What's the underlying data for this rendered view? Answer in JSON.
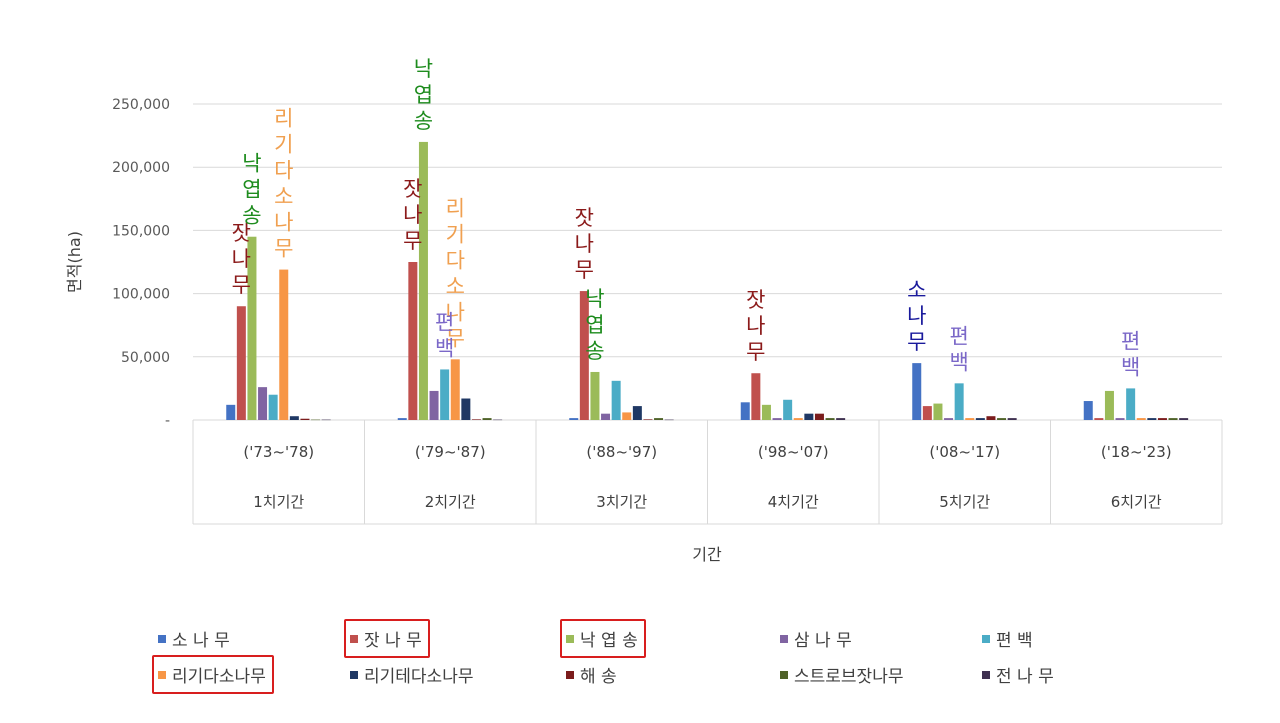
{
  "chart_data": {
    "type": "bar",
    "title": "",
    "xlabel": "기간",
    "ylabel": "면적(ha)",
    "ylim": [
      0,
      250000
    ],
    "yticks": [
      "-",
      "50,000",
      "100,000",
      "150,000",
      "200,000",
      "250,000"
    ],
    "grid": true,
    "legend_position": "bottom",
    "categories": [
      {
        "period": "('73~'78)",
        "phase": "1치기간"
      },
      {
        "period": "('79~'87)",
        "phase": "2치기간"
      },
      {
        "period": "('88~'97)",
        "phase": "3치기간"
      },
      {
        "period": "('98~'07)",
        "phase": "4치기간"
      },
      {
        "period": "('08~'17)",
        "phase": "5치기간"
      },
      {
        "period": "('18~'23)",
        "phase": "6치기간"
      }
    ],
    "series": [
      {
        "name": "소 나 무",
        "color": "#4472c4",
        "values": [
          12000,
          1500,
          1500,
          14000,
          45000,
          15000
        ]
      },
      {
        "name": "잣 나 무",
        "color": "#c0504d",
        "values": [
          90000,
          125000,
          102000,
          37000,
          11000,
          1500
        ]
      },
      {
        "name": "낙 엽 송",
        "color": "#9bbb59",
        "values": [
          145000,
          220000,
          38000,
          12000,
          13000,
          23000
        ]
      },
      {
        "name": "삼 나 무",
        "color": "#8064a2",
        "values": [
          26000,
          23000,
          5000,
          1500,
          1500,
          1500
        ]
      },
      {
        "name": "편 백",
        "color": "#4bacc6",
        "values": [
          20000,
          40000,
          31000,
          16000,
          29000,
          25000
        ]
      },
      {
        "name": "리기다소나무",
        "color": "#f79646",
        "values": [
          119000,
          48000,
          6000,
          1500,
          1500,
          1500
        ]
      },
      {
        "name": "리기테다소나무",
        "color": "#1f3864",
        "values": [
          3000,
          17000,
          11000,
          5000,
          1500,
          1500
        ]
      },
      {
        "name": "해 송",
        "color": "#7b1c1c",
        "values": [
          1000,
          500,
          500,
          5000,
          3000,
          1500
        ]
      },
      {
        "name": "스트로브잣나무",
        "color": "#4f6228",
        "values": [
          300,
          1500,
          1500,
          1500,
          1500,
          1500
        ]
      },
      {
        "name": "전 나 무",
        "color": "#3f3151",
        "values": [
          300,
          300,
          300,
          1500,
          1500,
          1500
        ]
      }
    ],
    "highlighted_legend": [
      "잣 나 무",
      "낙 엽 송",
      "리기다소나무"
    ],
    "annotations": [
      {
        "text": "잣나무",
        "category": 0,
        "color": "#8b1a1a"
      },
      {
        "text": "낙엽송",
        "category": 0,
        "color": "#1e8c1e"
      },
      {
        "text": "리기다소나무",
        "category": 0,
        "color": "#f0a050"
      },
      {
        "text": "잣나무",
        "category": 1,
        "color": "#8b1a1a"
      },
      {
        "text": "낙엽송",
        "category": 1,
        "color": "#1e8c1e"
      },
      {
        "text": "리기다소나무",
        "category": 1,
        "color": "#f0a050"
      },
      {
        "text": "편백",
        "category": 1,
        "color": "#7b68c8"
      },
      {
        "text": "잣나무",
        "category": 2,
        "color": "#8b1a1a"
      },
      {
        "text": "낙엽송",
        "category": 2,
        "color": "#1e8c1e"
      },
      {
        "text": "잣나무",
        "category": 3,
        "color": "#8b1a1a"
      },
      {
        "text": "소나무",
        "category": 4,
        "color": "#1a1a9c"
      },
      {
        "text": "편백",
        "category": 4,
        "color": "#7b68c8"
      },
      {
        "text": "편백",
        "category": 5,
        "color": "#7b68c8"
      }
    ]
  }
}
